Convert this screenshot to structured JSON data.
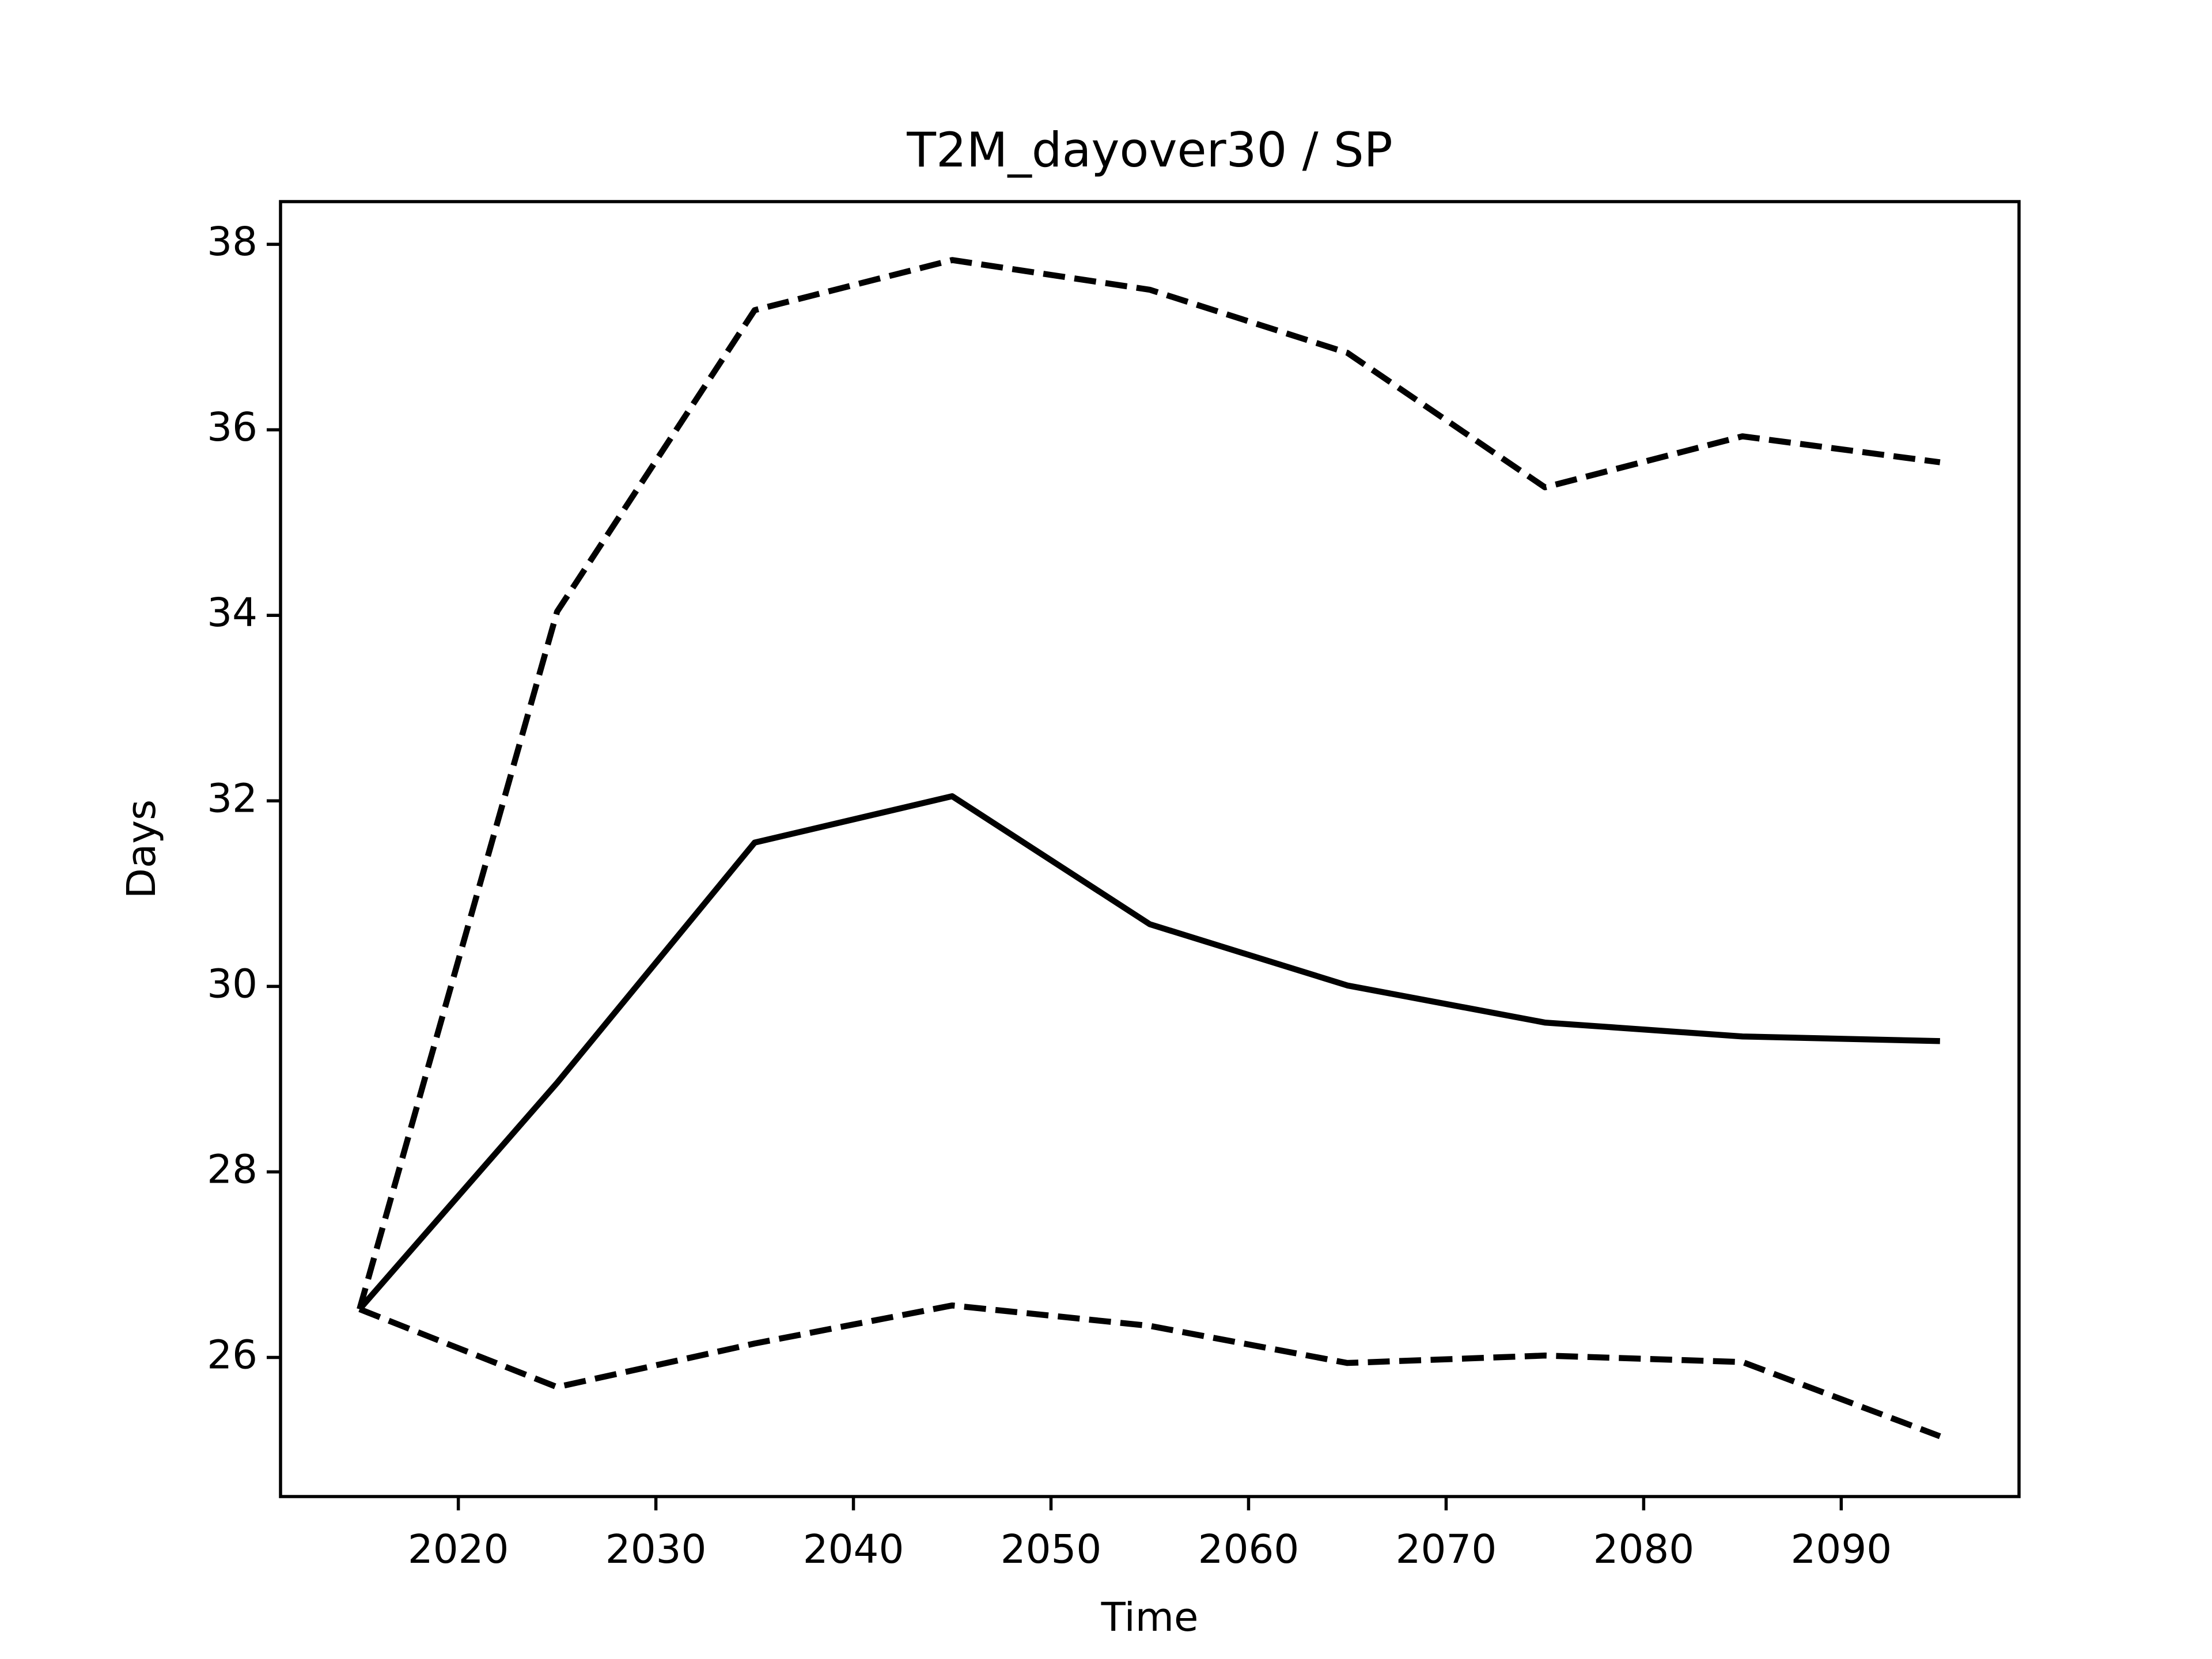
{
  "chart_data": {
    "type": "line",
    "title": "T2M_dayover30 / SP",
    "x_label": "Time",
    "y_label": "Days",
    "x": [
      2015,
      2025,
      2035,
      2045,
      2055,
      2065,
      2075,
      2085,
      2095
    ],
    "series": [
      {
        "color": "#000000",
        "linestyle": "solid",
        "values": [
          26.52,
          28.96,
          31.55,
          32.05,
          30.67,
          30.01,
          29.61,
          29.46,
          29.41
        ]
      },
      {
        "color": "#000000",
        "linestyle": "dashed",
        "values": [
          26.52,
          34.04,
          37.29,
          37.83,
          37.51,
          36.83,
          35.38,
          35.93,
          35.65
        ]
      },
      {
        "color": "#000000",
        "linestyle": "dashed",
        "values": [
          26.52,
          25.68,
          26.15,
          26.56,
          26.34,
          25.94,
          26.02,
          25.95,
          25.15
        ]
      }
    ],
    "xlim": [
      2011,
      2099
    ],
    "ylim": [
      24.5,
      38.46
    ],
    "xticks": [
      2020,
      2030,
      2040,
      2050,
      2060,
      2070,
      2080,
      2090
    ],
    "yticks": [
      26,
      28,
      30,
      32,
      34,
      36,
      38
    ],
    "grid": false
  }
}
